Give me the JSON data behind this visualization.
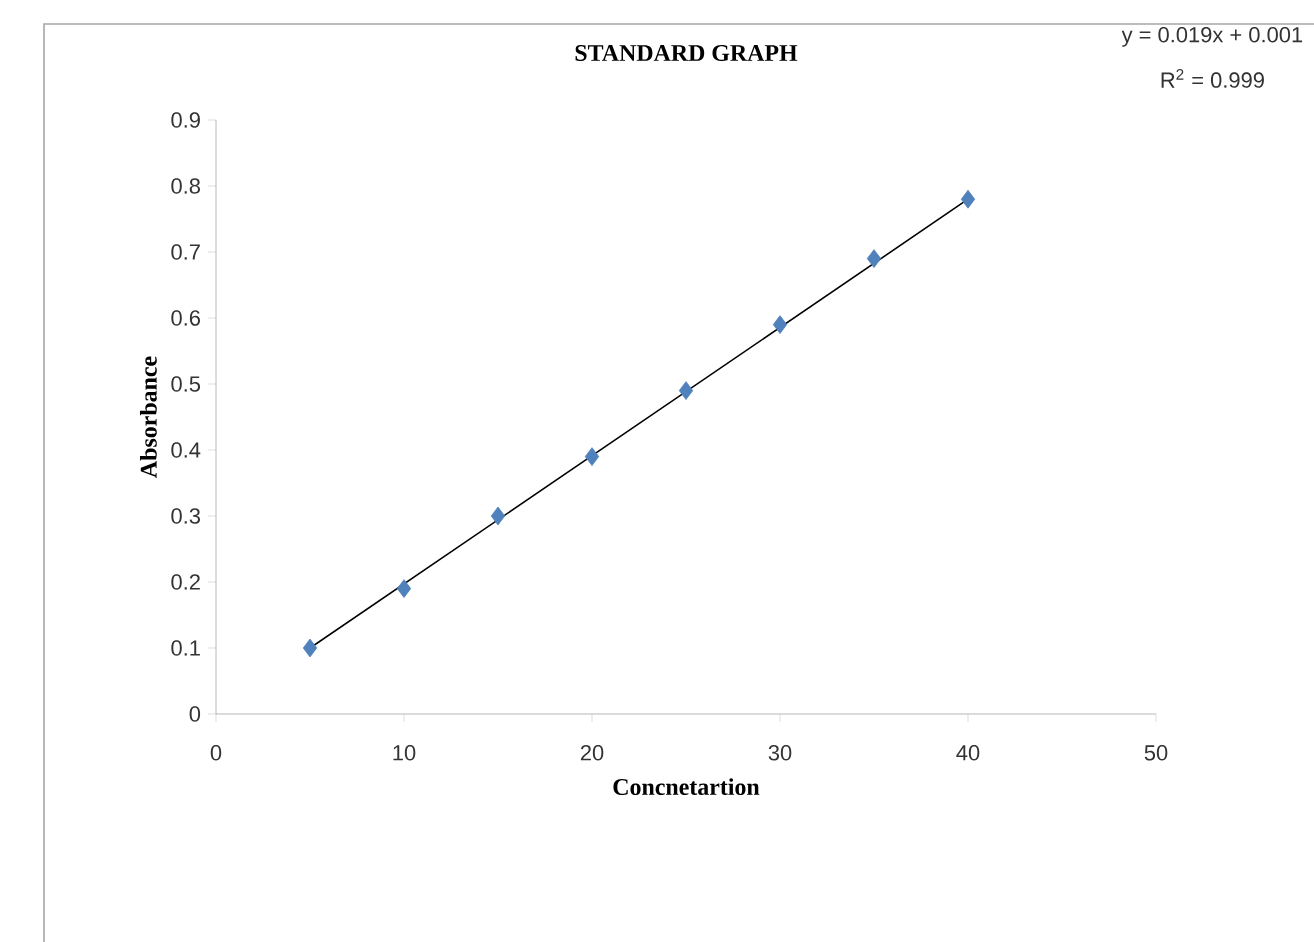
{
  "chart_data": {
    "type": "scatter",
    "title": "STANDARD GRAPH",
    "xlabel": "Concnetartion",
    "ylabel": "Absorbance",
    "annotations": [
      "y = 0.019x + 0.001",
      "R$^{2}$ = 0.999"
    ],
    "xlim": [
      0,
      50
    ],
    "xticks": [
      0,
      10,
      20,
      30,
      40,
      50
    ],
    "ylim": [
      0,
      0.9
    ],
    "yticks": [
      0,
      0.1,
      0.2,
      0.3,
      0.4,
      0.5,
      0.6,
      0.7,
      0.8,
      0.9
    ],
    "grid": false,
    "series": [
      {
        "color": "#4f81bd",
        "marker": "diamond",
        "x": [
          5,
          10,
          15,
          20,
          25,
          30,
          35,
          40
        ],
        "values": [
          0.1,
          0.19,
          0.3,
          0.39,
          0.49,
          0.59,
          0.69,
          0.78
        ]
      },
      {
        "type": "line",
        "color": "#000000",
        "marker": "none",
        "line_style": "solid",
        "x": [
          5,
          40
        ],
        "values": [
          0.1,
          0.78
        ]
      }
    ]
  }
}
